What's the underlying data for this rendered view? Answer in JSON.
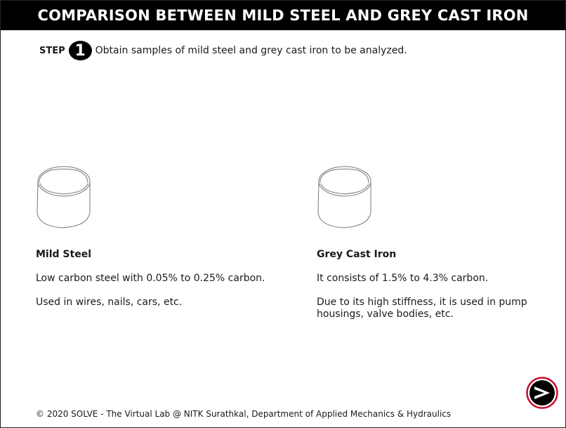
{
  "header": {
    "title": "COMPARISON BETWEEN MILD STEEL AND GREY CAST IRON"
  },
  "step": {
    "label": "STEP",
    "number": "1",
    "text": "Obtain samples of mild steel and grey cast iron to be analyzed."
  },
  "samples": [
    {
      "name": "Mild Steel",
      "description": "Low carbon steel with 0.05% to 0.25% carbon.",
      "usage": "Used in wires, nails, cars, etc.",
      "icon": "cylinder-sample-icon"
    },
    {
      "name": "Grey Cast Iron",
      "description": "It consists of 1.5% to 4.3% carbon.",
      "usage": "Due to its high stiffness, it is used in pump housings, valve bodies, etc.",
      "icon": "cylinder-sample-icon"
    }
  ],
  "footer": {
    "text": "© 2020 SOLVE - The Virtual Lab @ NITK Surathkal, Department of Applied Mechanics & Hydraulics"
  },
  "navigation": {
    "next_icon": "next-arrow-icon"
  },
  "colors": {
    "title_bar": "#000000",
    "title_text": "#ffffff",
    "next_ring": "#c8102e",
    "outline": "#777777"
  }
}
